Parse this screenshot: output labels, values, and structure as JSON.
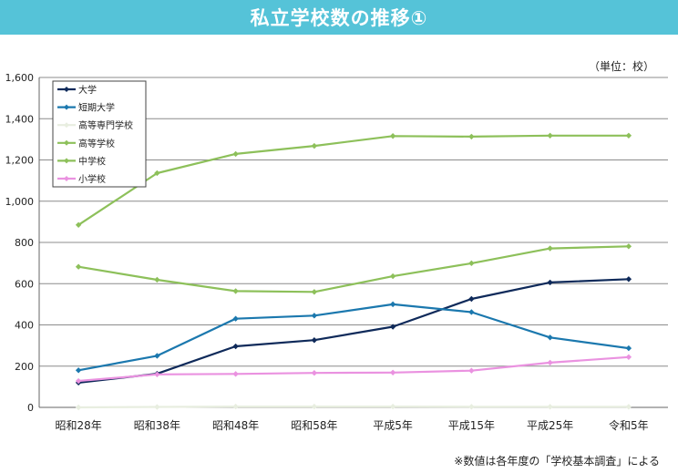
{
  "header": {
    "title": "私立学校数の推移①"
  },
  "chart_data": {
    "type": "line",
    "unit_label": "（単位：校）",
    "note": "※数値は各年度の「学校基本調査」による",
    "categories": [
      "昭和28年",
      "昭和38年",
      "昭和48年",
      "昭和58年",
      "平成5年",
      "平成15年",
      "平成25年",
      "令和5年"
    ],
    "ylim": [
      0,
      1600
    ],
    "yticks": [
      0,
      200,
      400,
      600,
      800,
      1000,
      1200,
      1400,
      1600
    ],
    "ytick_labels": [
      "0",
      "200",
      "400",
      "600",
      "800",
      "1,000",
      "1,200",
      "1,400",
      "1,600"
    ],
    "grid": true,
    "legend_position": "top-left",
    "series": [
      {
        "name": "大学",
        "color": "#0f2a5a",
        "values": [
          120,
          163,
          296,
          326,
          391,
          526,
          606,
          622
        ]
      },
      {
        "name": "短期大学",
        "color": "#1b78ae",
        "values": [
          180,
          250,
          430,
          445,
          500,
          462,
          339,
          287
        ]
      },
      {
        "name": "高等専門学校",
        "color": "#e8eee0",
        "values": [
          0,
          2,
          4,
          4,
          4,
          3,
          3,
          3
        ]
      },
      {
        "name": "高等学校",
        "color": "#8dc05a",
        "values": [
          885,
          1136,
          1229,
          1268,
          1316,
          1313,
          1318,
          1318
        ]
      },
      {
        "name": "中学校",
        "color": "#8dc05a",
        "values": [
          682,
          619,
          564,
          560,
          636,
          699,
          771,
          781
        ]
      },
      {
        "name": "小学校",
        "color": "#ea92e0",
        "values": [
          128,
          160,
          162,
          167,
          169,
          178,
          217,
          244
        ]
      }
    ]
  }
}
